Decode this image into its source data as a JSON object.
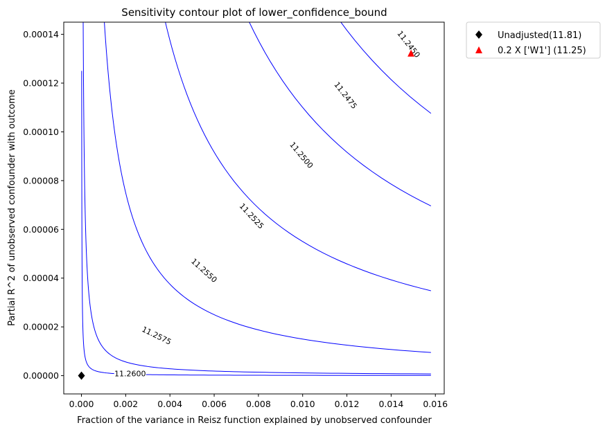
{
  "chart_data": {
    "type": "contour",
    "title": "Sensitivity contour plot of lower_confidence_bound",
    "xlabel": "Fraction of the variance in Reisz function explained by unobserved confounder",
    "ylabel": "Partial R^2 of unobserved confounder with outcome",
    "xlim": [
      -0.0008,
      0.0164
    ],
    "ylim": [
      -7.5e-06,
      0.000145
    ],
    "x_ticks": [
      "0.000",
      "0.002",
      "0.004",
      "0.006",
      "0.008",
      "0.010",
      "0.012",
      "0.014",
      "0.016"
    ],
    "x_tick_values": [
      0,
      0.002,
      0.004,
      0.006,
      0.008,
      0.01,
      0.012,
      0.014,
      0.016
    ],
    "y_ticks": [
      "0.00000",
      "0.00002",
      "0.00004",
      "0.00006",
      "0.00008",
      "0.00010",
      "0.00012",
      "0.00014"
    ],
    "y_tick_values": [
      0,
      2e-05,
      4e-05,
      6e-05,
      8e-05,
      0.0001,
      0.00012,
      0.00014
    ],
    "contour_color": "#0000ff",
    "grid": false,
    "legend_position": "outside-top-right",
    "contours": [
      {
        "level": 11.26,
        "label": "11.2600",
        "c": 1.25e-09,
        "label_at": {
          "x": 0.0022,
          "y": 9e-07
        },
        "label_angle": 0
      },
      {
        "level": 11.2575,
        "label": "11.2575",
        "c": 1.125e-08,
        "label_at": {
          "x": 0.0034,
          "y": 1.65e-05
        },
        "label_angle": 26
      },
      {
        "level": 11.255,
        "label": "11.2550",
        "c": 1.5e-07,
        "label_at": {
          "x": 0.00555,
          "y": 4.32e-05
        },
        "label_angle": 42
      },
      {
        "level": 11.2525,
        "label": "11.2525",
        "c": 5.5e-07,
        "label_at": {
          "x": 0.0077,
          "y": 6.55e-05
        },
        "label_angle": 47
      },
      {
        "level": 11.25,
        "label": "11.2500",
        "c": 1.1e-06,
        "label_at": {
          "x": 0.00995,
          "y": 9.05e-05
        },
        "label_angle": 50
      },
      {
        "level": 11.2475,
        "label": "11.2475",
        "c": 1.7e-06,
        "label_at": {
          "x": 0.01195,
          "y": 0.000115
        },
        "label_angle": 52
      },
      {
        "level": 11.245,
        "label": "11.2450",
        "c": 2.4e-06,
        "label_at": {
          "x": 0.0148,
          "y": 0.000136
        },
        "label_angle": 52
      }
    ],
    "x_max_contour": 0.0158,
    "points": [
      {
        "name": "Unadjusted(11.81)",
        "x": 0.0,
        "y": 0.0,
        "marker": "diamond",
        "color": "#000000"
      },
      {
        "name": "0.2 X ['W1'] (11.25)",
        "x": 0.0149,
        "y": 0.000132,
        "marker": "triangle",
        "color": "#ff0000"
      }
    ]
  }
}
